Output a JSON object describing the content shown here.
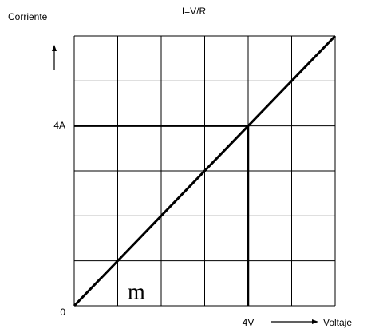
{
  "chart_data": {
    "type": "line",
    "title": "I=V/R",
    "x_label": "Voltaje",
    "y_label": "Corriente",
    "annotations": [
      "m"
    ],
    "x": [
      0,
      6
    ],
    "series": [
      {
        "name": "I",
        "color": "#000000",
        "values": [
          0,
          6
        ]
      }
    ],
    "xlim": [
      0,
      6
    ],
    "ylim": [
      0,
      6
    ],
    "xticks": [
      {
        "value": 4,
        "label": "4V"
      }
    ],
    "yticks": [
      0,
      {
        "value": 4,
        "label": "4A"
      }
    ],
    "grid": true,
    "grid_step": 1
  }
}
